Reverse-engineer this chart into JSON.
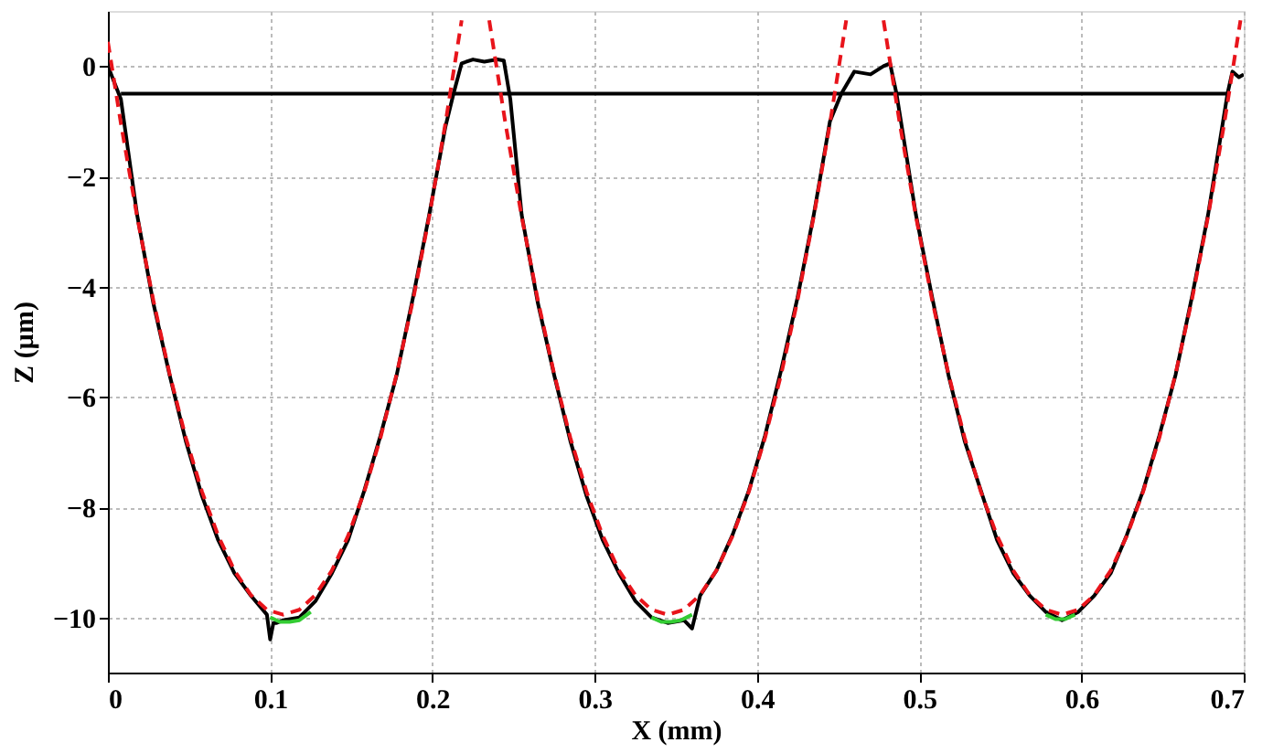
{
  "chart_data": {
    "type": "line",
    "xlabel": "X (mm)",
    "ylabel": "Z (µm)",
    "xlim": [
      0,
      0.7
    ],
    "ylim": [
      -11,
      1
    ],
    "xticks": [
      0,
      0.1,
      0.2,
      0.3,
      0.4,
      0.5,
      0.6,
      0.7
    ],
    "yticks": [
      0,
      -2,
      -4,
      -6,
      -8,
      -10
    ],
    "grid": true,
    "marker": "none",
    "series": [
      {
        "color": "#000000",
        "line_style": "solid",
        "x": [
          0,
          0.004,
          0.008,
          0.018,
          0.028,
          0.038,
          0.048,
          0.058,
          0.068,
          0.078,
          0.088,
          0.098,
          0.1,
          0.102,
          0.104,
          0.108,
          0.118,
          0.128,
          0.138,
          0.148,
          0.158,
          0.168,
          0.178,
          0.188,
          0.198,
          0.208,
          0.213,
          0.218,
          0.225,
          0.232,
          0.24,
          0.244,
          0.248,
          0.255,
          0.265,
          0.275,
          0.285,
          0.295,
          0.305,
          0.315,
          0.325,
          0.335,
          0.345,
          0.355,
          0.36,
          0.365,
          0.375,
          0.385,
          0.395,
          0.405,
          0.415,
          0.425,
          0.435,
          0.445,
          0.452,
          0.46,
          0.47,
          0.478,
          0.482,
          0.486,
          0.498,
          0.508,
          0.518,
          0.528,
          0.538,
          0.548,
          0.558,
          0.568,
          0.578,
          0.588,
          0.598,
          0.608,
          0.618,
          0.628,
          0.638,
          0.648,
          0.658,
          0.668,
          0.678,
          0.69,
          0.693,
          0.697,
          0.7
        ],
        "values": [
          0.0,
          -0.3,
          -0.6,
          -2.7,
          -4.3,
          -5.6,
          -6.8,
          -7.8,
          -8.6,
          -9.2,
          -9.6,
          -9.95,
          -10.4,
          -10.1,
          -10.1,
          -10.05,
          -10.0,
          -9.7,
          -9.2,
          -8.6,
          -7.7,
          -6.7,
          -5.6,
          -4.2,
          -2.7,
          -1.1,
          -0.5,
          0.05,
          0.12,
          0.08,
          0.12,
          0.1,
          -0.6,
          -2.7,
          -4.3,
          -5.6,
          -6.8,
          -7.8,
          -8.6,
          -9.2,
          -9.7,
          -10.0,
          -10.1,
          -10.05,
          -10.2,
          -9.6,
          -9.15,
          -8.5,
          -7.7,
          -6.7,
          -5.5,
          -4.2,
          -2.7,
          -1.0,
          -0.5,
          -0.1,
          -0.15,
          0.0,
          0.05,
          -0.5,
          -2.7,
          -4.2,
          -5.6,
          -6.8,
          -7.7,
          -8.6,
          -9.2,
          -9.6,
          -9.9,
          -10.05,
          -9.9,
          -9.6,
          -9.2,
          -8.5,
          -7.7,
          -6.7,
          -5.6,
          -4.2,
          -2.7,
          -0.5,
          -0.1,
          -0.2,
          -0.15
        ]
      },
      {
        "color": "#000000",
        "line_style": "solid",
        "x": [
          0.008,
          0.69
        ],
        "values": [
          -0.5,
          -0.5
        ]
      },
      {
        "color": "#33cc33",
        "line_style": "solid",
        "x": [
          0.1,
          0.106,
          0.112,
          0.118,
          0.125
        ],
        "values": [
          -10.0,
          -10.08,
          -10.08,
          -10.05,
          -9.9
        ]
      },
      {
        "color": "#33cc33",
        "line_style": "solid",
        "x": [
          0.335,
          0.341,
          0.347,
          0.353,
          0.36
        ],
        "values": [
          -10.0,
          -10.08,
          -10.08,
          -10.05,
          -9.95
        ]
      },
      {
        "color": "#33cc33",
        "line_style": "solid",
        "x": [
          0.578,
          0.584,
          0.59,
          0.596
        ],
        "values": [
          -9.95,
          -10.03,
          -10.03,
          -9.95
        ]
      },
      {
        "color": "#e8141b",
        "line_style": "dashed",
        "x": [
          0,
          0.008,
          0.018,
          0.028,
          0.038,
          0.048,
          0.058,
          0.068,
          0.078,
          0.088,
          0.098,
          0.108,
          0.118,
          0.128,
          0.138,
          0.148,
          0.158,
          0.168,
          0.178,
          0.188,
          0.198,
          0.208,
          0.218
        ],
        "values": [
          0.44,
          -1.04,
          -2.73,
          -4.25,
          -5.58,
          -6.74,
          -7.72,
          -8.52,
          -9.15,
          -9.59,
          -9.86,
          -9.95,
          -9.86,
          -9.59,
          -9.15,
          -8.52,
          -7.72,
          -6.74,
          -5.58,
          -4.25,
          -2.73,
          -1.04,
          0.83
        ]
      },
      {
        "color": "#e8141b",
        "line_style": "dashed",
        "x": [
          0.235,
          0.245,
          0.255,
          0.265,
          0.275,
          0.285,
          0.295,
          0.305,
          0.315,
          0.325,
          0.335,
          0.345,
          0.355,
          0.365,
          0.375,
          0.385,
          0.395,
          0.405,
          0.415,
          0.425,
          0.435,
          0.445,
          0.455
        ],
        "values": [
          0.83,
          -1.04,
          -2.73,
          -4.25,
          -5.58,
          -6.74,
          -7.72,
          -8.52,
          -9.15,
          -9.59,
          -9.86,
          -9.95,
          -9.86,
          -9.59,
          -9.15,
          -8.52,
          -7.72,
          -6.74,
          -5.58,
          -4.25,
          -2.73,
          -1.04,
          0.83
        ]
      },
      {
        "color": "#e8141b",
        "line_style": "dashed",
        "x": [
          0.478,
          0.488,
          0.498,
          0.508,
          0.518,
          0.528,
          0.538,
          0.548,
          0.558,
          0.568,
          0.578,
          0.588,
          0.598,
          0.608,
          0.618,
          0.628,
          0.638,
          0.648,
          0.658,
          0.668,
          0.678,
          0.688,
          0.698
        ],
        "values": [
          0.83,
          -1.04,
          -2.73,
          -4.25,
          -5.58,
          -6.74,
          -7.72,
          -8.52,
          -9.15,
          -9.59,
          -9.86,
          -9.95,
          -9.86,
          -9.59,
          -9.15,
          -8.52,
          -7.72,
          -6.74,
          -5.58,
          -4.25,
          -2.73,
          -1.04,
          0.83
        ]
      }
    ]
  }
}
